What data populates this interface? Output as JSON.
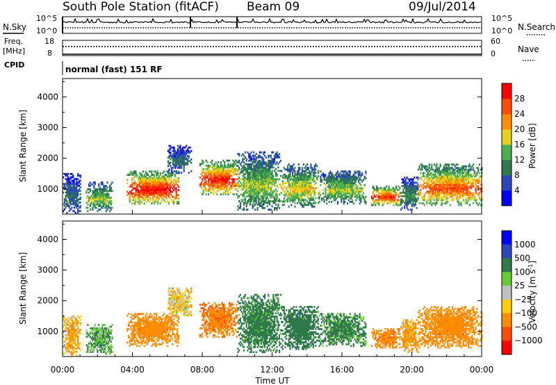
{
  "header": {
    "station": "South Pole Station (fitACF)",
    "beam": "Beam 09",
    "date": "09/Jul/2014"
  },
  "panels_top": {
    "nsky_label": "N.Sky",
    "nsearch_label": "N.Search",
    "nsky_ticks": [
      "10^5",
      "10^0"
    ],
    "nsearch_ticks": [
      "10^5",
      "10^0"
    ],
    "freq_label": "Freq.",
    "freq_unit": "[MHz]",
    "freq_ticks": [
      "18",
      "8"
    ],
    "nave_label": "Nave",
    "nave_ticks": [
      "60",
      "0"
    ],
    "cpid_label": "CPID",
    "cpid_value": "normal (fast) 151 RF"
  },
  "colors": {
    "power_scale": [
      "#0000ff",
      "#2a48b8",
      "#2f7a4a",
      "#4caf50",
      "#e6d21a",
      "#ff8c00",
      "#ff4a00",
      "#ff0000"
    ],
    "velocity_scale": [
      "#0000ff",
      "#2a48b8",
      "#2f7a4a",
      "#66cc33",
      "#c0c0c0",
      "#ffcc00",
      "#ff8c00",
      "#ff4a00",
      "#ff0000"
    ]
  },
  "chart_data": [
    {
      "type": "heatmap",
      "title": "",
      "xlabel": "",
      "ylabel": "Slant Range [km]",
      "xlim": [
        "00:00",
        "24:00"
      ],
      "ylim": [
        180,
        4600
      ],
      "yticks": [
        1000,
        2000,
        3000,
        4000
      ],
      "colorbar": {
        "label": "Power [dB]",
        "ticks": [
          4,
          8,
          12,
          16,
          20,
          24,
          28
        ],
        "range": [
          0,
          32
        ]
      },
      "echo_regions": [
        {
          "t_start": "00:00",
          "t_end": "01:00",
          "range_km": [
            200,
            1500
          ],
          "value_db": 8
        },
        {
          "t_start": "01:20",
          "t_end": "02:50",
          "range_km": [
            250,
            1200
          ],
          "value_db": 14
        },
        {
          "t_start": "03:40",
          "t_end": "06:40",
          "range_km": [
            500,
            1600
          ],
          "value_db": 26
        },
        {
          "t_start": "06:00",
          "t_end": "07:20",
          "range_km": [
            1500,
            2400
          ],
          "value_db": 8
        },
        {
          "t_start": "07:50",
          "t_end": "10:00",
          "range_km": [
            800,
            1950
          ],
          "value_db": 25
        },
        {
          "t_start": "10:00",
          "t_end": "12:30",
          "range_km": [
            300,
            2200
          ],
          "value_db": 14
        },
        {
          "t_start": "12:30",
          "t_end": "14:40",
          "range_km": [
            400,
            1800
          ],
          "value_db": 16
        },
        {
          "t_start": "14:40",
          "t_end": "17:20",
          "range_km": [
            500,
            1600
          ],
          "value_db": 14
        },
        {
          "t_start": "17:40",
          "t_end": "19:20",
          "range_km": [
            450,
            1100
          ],
          "value_db": 24
        },
        {
          "t_start": "19:20",
          "t_end": "20:20",
          "range_km": [
            300,
            1400
          ],
          "value_db": 10
        },
        {
          "t_start": "20:20",
          "t_end": "24:00",
          "range_km": [
            450,
            1800
          ],
          "value_db": 22
        }
      ]
    },
    {
      "type": "heatmap",
      "title": "",
      "xlabel": "Time UT",
      "ylabel": "Slant Range [km]",
      "xlim": [
        "00:00",
        "24:00"
      ],
      "ylim": [
        180,
        4600
      ],
      "xticks": [
        "00:00",
        "04:00",
        "08:00",
        "12:00",
        "16:00",
        "20:00",
        "00:00"
      ],
      "yticks": [
        1000,
        2000,
        3000,
        4000
      ],
      "colorbar": {
        "label": "Velocity [m s^-1]",
        "ticks": [
          1000,
          500,
          100,
          25,
          -25,
          -100,
          -500,
          -1000
        ]
      },
      "echo_regions": [
        {
          "t_start": "00:00",
          "t_end": "01:00",
          "range_km": [
            200,
            1500
          ],
          "value_ms": -100
        },
        {
          "t_start": "01:20",
          "t_end": "02:50",
          "range_km": [
            250,
            1200
          ],
          "value_ms": 100
        },
        {
          "t_start": "03:40",
          "t_end": "06:40",
          "range_km": [
            500,
            1600
          ],
          "value_ms": -300
        },
        {
          "t_start": "06:00",
          "t_end": "07:20",
          "range_km": [
            1500,
            2400
          ],
          "value_ms": -50
        },
        {
          "t_start": "07:50",
          "t_end": "10:00",
          "range_km": [
            800,
            1950
          ],
          "value_ms": -400
        },
        {
          "t_start": "10:00",
          "t_end": "12:30",
          "range_km": [
            300,
            2200
          ],
          "value_ms": 200
        },
        {
          "t_start": "12:30",
          "t_end": "14:40",
          "range_km": [
            400,
            1800
          ],
          "value_ms": 300
        },
        {
          "t_start": "14:40",
          "t_end": "17:20",
          "range_km": [
            500,
            1600
          ],
          "value_ms": 150
        },
        {
          "t_start": "17:40",
          "t_end": "19:20",
          "range_km": [
            450,
            1100
          ],
          "value_ms": -350
        },
        {
          "t_start": "19:20",
          "t_end": "20:20",
          "range_km": [
            300,
            1400
          ],
          "value_ms": -150
        },
        {
          "t_start": "20:20",
          "t_end": "24:00",
          "range_km": [
            450,
            1800
          ],
          "value_ms": -300
        }
      ]
    }
  ]
}
